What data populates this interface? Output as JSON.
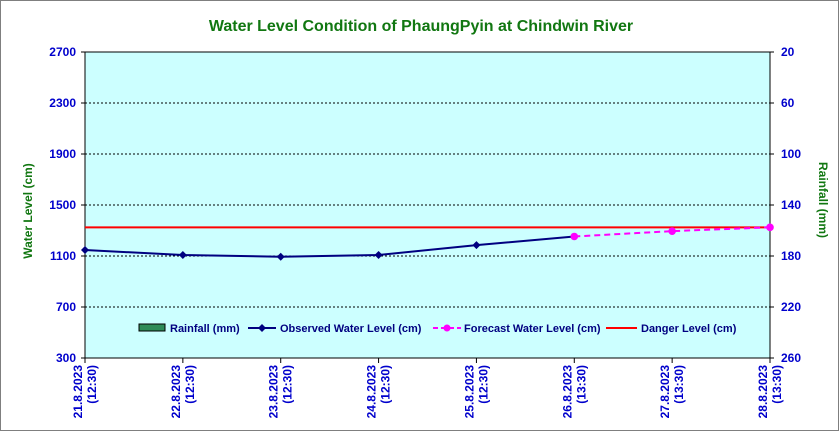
{
  "colors": {
    "title": "#117711",
    "axis_label": "#117711",
    "tick": "#0000cc",
    "plot_bg": "#ccffff",
    "observed": "#000080",
    "forecast": "#ff00ff",
    "danger": "#ff0000",
    "rainfall": "#2e8b57"
  },
  "chart_data": {
    "type": "line",
    "title": "Water Level Condition of PhaungPyin at Chindwin River",
    "ylabel": "Water Level (cm)",
    "y2label": "Rainfall (mm)",
    "ylim": [
      300,
      2700
    ],
    "yticks": [
      300,
      700,
      1100,
      1500,
      1900,
      2300,
      2700
    ],
    "y2lim": [
      20,
      260
    ],
    "y2ticks": [
      20,
      60,
      100,
      140,
      180,
      220,
      260
    ],
    "y2_reversed": true,
    "grid": true,
    "legend_position": "bottom-inside",
    "x": [
      {
        "date": "21.8.2023",
        "time": "(12:30)"
      },
      {
        "date": "22.8.2023",
        "time": "(12:30)"
      },
      {
        "date": "23.8.2023",
        "time": "(12:30)"
      },
      {
        "date": "24.8.2023",
        "time": "(12:30)"
      },
      {
        "date": "25.8.2023",
        "time": "(12:30)"
      },
      {
        "date": "26.8.2023",
        "time": "(13:30)"
      },
      {
        "date": "27.8.2023",
        "time": "(13:30)"
      },
      {
        "date": "28.8.2023",
        "time": "(13:30)"
      }
    ],
    "series": [
      {
        "name": "Rainfall (mm)",
        "type": "bar",
        "values": [
          null,
          null,
          null,
          null,
          null,
          null,
          null,
          null
        ]
      },
      {
        "name": "Observed Water Level (cm)",
        "type": "line",
        "values": [
          1147,
          1108,
          1094,
          1108,
          1185,
          1253,
          null,
          null
        ]
      },
      {
        "name": "Forecast Water Level (cm)",
        "type": "line",
        "dashed": true,
        "values": [
          null,
          null,
          null,
          null,
          null,
          1253,
          1295,
          1325
        ]
      },
      {
        "name": "Danger Level (cm)",
        "type": "line",
        "constant": 1325
      }
    ]
  }
}
